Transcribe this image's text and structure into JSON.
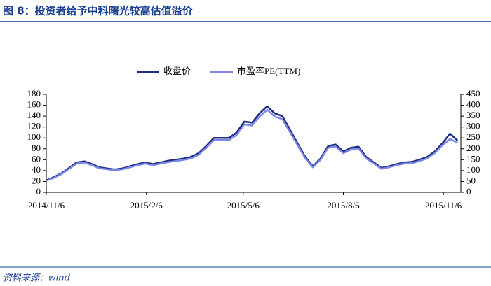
{
  "chart_data": {
    "type": "line",
    "title": "图 8：投资者给予中科曙光较高估值溢价",
    "source": "资料来源：wind",
    "x": [
      "2014/11/6",
      "2014/11/13",
      "2014/11/20",
      "2014/11/27",
      "2014/12/4",
      "2014/12/11",
      "2014/12/18",
      "2014/12/25",
      "2015/1/1",
      "2015/1/8",
      "2015/1/15",
      "2015/1/22",
      "2015/1/29",
      "2015/2/5",
      "2015/2/12",
      "2015/2/19",
      "2015/2/26",
      "2015/3/5",
      "2015/3/12",
      "2015/3/19",
      "2015/3/26",
      "2015/4/2",
      "2015/4/9",
      "2015/4/16",
      "2015/4/23",
      "2015/4/30",
      "2015/5/7",
      "2015/5/14",
      "2015/5/21",
      "2015/5/28",
      "2015/6/4",
      "2015/6/11",
      "2015/6/18",
      "2015/6/25",
      "2015/7/2",
      "2015/7/9",
      "2015/7/16",
      "2015/7/23",
      "2015/7/30",
      "2015/8/6",
      "2015/8/13",
      "2015/8/20",
      "2015/8/27",
      "2015/9/3",
      "2015/9/10",
      "2015/9/17",
      "2015/9/24",
      "2015/10/1",
      "2015/10/8",
      "2015/10/15",
      "2015/10/22",
      "2015/10/29",
      "2015/11/5",
      "2015/11/12",
      "2015/11/19"
    ],
    "series": [
      {
        "name": "收盘价",
        "color": "#1f2f7a",
        "values": [
          22,
          28,
          35,
          45,
          55,
          57,
          52,
          46,
          44,
          42,
          44,
          48,
          52,
          55,
          52,
          55,
          58,
          60,
          62,
          65,
          72,
          85,
          100,
          100,
          100,
          110,
          130,
          128,
          145,
          158,
          145,
          140,
          115,
          90,
          65,
          48,
          62,
          85,
          88,
          75,
          82,
          84,
          65,
          55,
          45,
          48,
          52,
          55,
          56,
          60,
          65,
          75,
          90,
          108,
          95
        ]
      },
      {
        "name": "市盈率PE(TTM)",
        "color": "#7b86e8",
        "axis": "y2",
        "values": [
          53,
          67,
          84,
          108,
          132,
          137,
          125,
          110,
          106,
          101,
          106,
          115,
          125,
          132,
          125,
          132,
          139,
          144,
          149,
          156,
          173,
          204,
          240,
          240,
          240,
          264,
          312,
          307,
          348,
          379,
          348,
          336,
          276,
          216,
          156,
          115,
          149,
          204,
          211,
          180,
          197,
          202,
          156,
          132,
          108,
          115,
          125,
          132,
          134,
          144,
          156,
          180,
          216,
          245,
          228
        ]
      }
    ],
    "xlim": [
      "2014/11/6",
      "2015/11/22"
    ],
    "xticks": [
      "2014/11/6",
      "2015/2/6",
      "2015/5/6",
      "2015/8/6",
      "2015/11/6"
    ],
    "ylim": [
      0,
      180
    ],
    "yticks": [
      0,
      20,
      40,
      60,
      80,
      100,
      120,
      140,
      160,
      180
    ],
    "y2lim": [
      0,
      450
    ],
    "y2ticks": [
      0,
      50,
      100,
      150,
      200,
      250,
      300,
      350,
      400,
      450
    ],
    "legend": "top"
  }
}
